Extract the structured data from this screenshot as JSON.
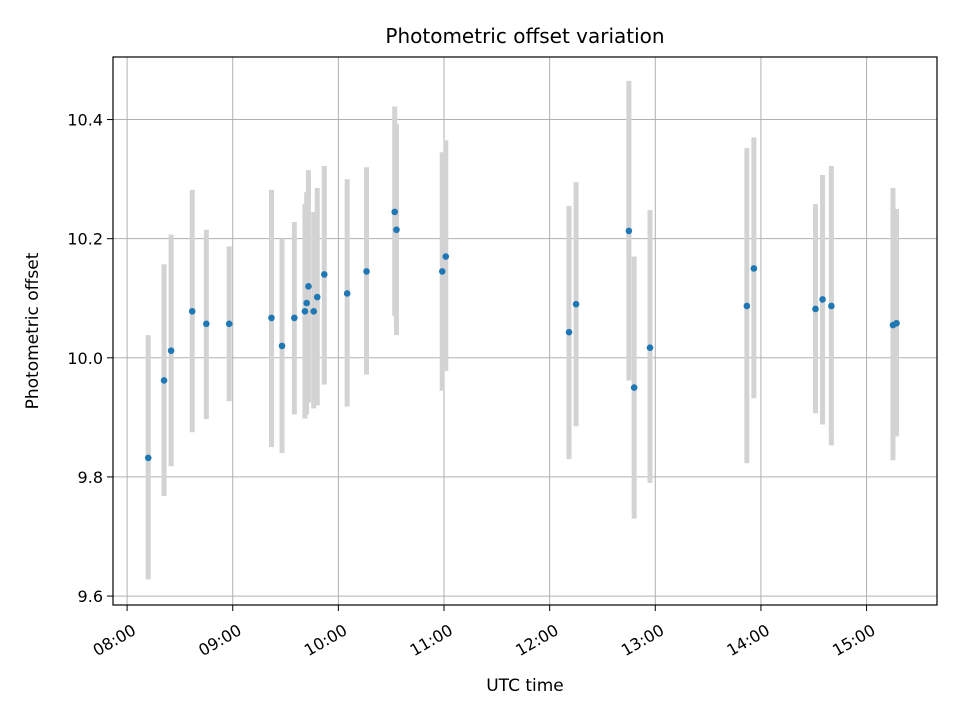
{
  "chart_data": {
    "type": "scatter",
    "title": "Photometric offset variation",
    "xlabel": "UTC time",
    "ylabel": "Photometric offset",
    "xlim": [
      "07:52",
      "15:40"
    ],
    "ylim": [
      9.585,
      10.505
    ],
    "grid": true,
    "x_ticks": [
      "08:00",
      "09:00",
      "10:00",
      "11:00",
      "12:00",
      "13:00",
      "14:00",
      "15:00"
    ],
    "y_ticks": [
      9.6,
      9.8,
      10.0,
      10.2,
      10.4
    ],
    "y_tick_labels": [
      "9.6",
      "9.8",
      "10.0",
      "10.2",
      "10.4"
    ],
    "colors": {
      "point": "#1f77b4",
      "errorbar": "#d3d3d3",
      "grid": "#b0b0b0"
    },
    "points": [
      {
        "x": "08:12",
        "y": 9.832,
        "low": 9.628,
        "high": 10.038
      },
      {
        "x": "08:21",
        "y": 9.962,
        "low": 9.768,
        "high": 10.157
      },
      {
        "x": "08:25",
        "y": 10.012,
        "low": 9.818,
        "high": 10.207
      },
      {
        "x": "08:37",
        "y": 10.078,
        "low": 9.875,
        "high": 10.282
      },
      {
        "x": "08:45",
        "y": 10.057,
        "low": 9.897,
        "high": 10.215
      },
      {
        "x": "08:58",
        "y": 10.057,
        "low": 9.927,
        "high": 10.187
      },
      {
        "x": "09:22",
        "y": 10.067,
        "low": 9.85,
        "high": 10.282
      },
      {
        "x": "09:28",
        "y": 10.02,
        "low": 9.84,
        "high": 10.2
      },
      {
        "x": "09:35",
        "y": 10.067,
        "low": 9.905,
        "high": 10.228
      },
      {
        "x": "09:41",
        "y": 10.078,
        "low": 9.898,
        "high": 10.258
      },
      {
        "x": "09:42",
        "y": 10.092,
        "low": 9.905,
        "high": 10.278
      },
      {
        "x": "09:43",
        "y": 10.12,
        "low": 9.925,
        "high": 10.315
      },
      {
        "x": "09:46",
        "y": 10.078,
        "low": 9.915,
        "high": 10.245
      },
      {
        "x": "09:48",
        "y": 10.102,
        "low": 9.92,
        "high": 10.285
      },
      {
        "x": "09:52",
        "y": 10.14,
        "low": 9.955,
        "high": 10.322
      },
      {
        "x": "10:05",
        "y": 10.108,
        "low": 9.918,
        "high": 10.3
      },
      {
        "x": "10:16",
        "y": 10.145,
        "low": 9.972,
        "high": 10.32
      },
      {
        "x": "10:32",
        "y": 10.245,
        "low": 10.07,
        "high": 10.422
      },
      {
        "x": "10:33",
        "y": 10.215,
        "low": 10.038,
        "high": 10.392
      },
      {
        "x": "10:59",
        "y": 10.145,
        "low": 9.945,
        "high": 10.345
      },
      {
        "x": "11:01",
        "y": 10.17,
        "low": 9.978,
        "high": 10.365
      },
      {
        "x": "12:11",
        "y": 10.043,
        "low": 9.83,
        "high": 10.255
      },
      {
        "x": "12:15",
        "y": 10.09,
        "low": 9.885,
        "high": 10.295
      },
      {
        "x": "12:45",
        "y": 10.213,
        "low": 9.962,
        "high": 10.465
      },
      {
        "x": "12:48",
        "y": 9.95,
        "low": 9.73,
        "high": 10.17
      },
      {
        "x": "12:57",
        "y": 10.017,
        "low": 9.79,
        "high": 10.248
      },
      {
        "x": "13:52",
        "y": 10.087,
        "low": 9.823,
        "high": 10.352
      },
      {
        "x": "13:56",
        "y": 10.15,
        "low": 9.932,
        "high": 10.37
      },
      {
        "x": "14:31",
        "y": 10.082,
        "low": 9.907,
        "high": 10.258
      },
      {
        "x": "14:35",
        "y": 10.098,
        "low": 9.888,
        "high": 10.307
      },
      {
        "x": "14:40",
        "y": 10.087,
        "low": 9.853,
        "high": 10.322
      },
      {
        "x": "15:15",
        "y": 10.055,
        "low": 9.828,
        "high": 10.285
      },
      {
        "x": "15:17",
        "y": 10.058,
        "low": 9.868,
        "high": 10.25
      }
    ]
  }
}
